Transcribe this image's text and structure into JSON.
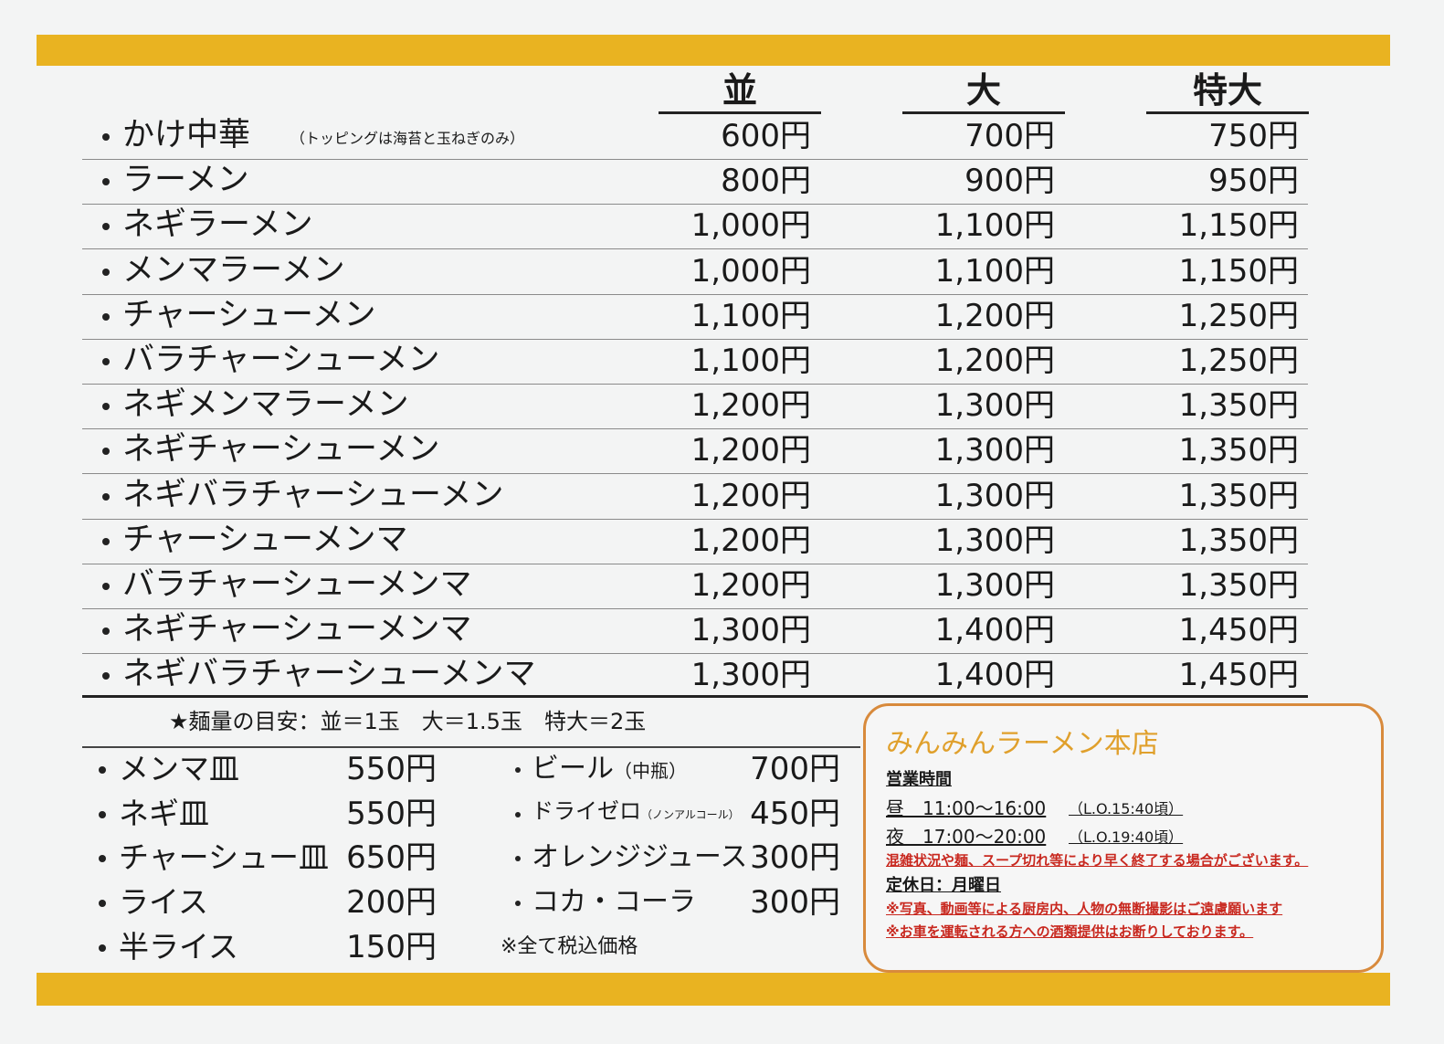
{
  "menu": {
    "headers": [
      "並",
      "大",
      "特大"
    ],
    "items": [
      {
        "name": "かけ中華",
        "note": "（トッピングは海苔と玉ねぎのみ）",
        "prices": [
          "600円",
          "700円",
          "750円"
        ]
      },
      {
        "name": "ラーメン",
        "prices": [
          "800円",
          "900円",
          "950円"
        ]
      },
      {
        "name": "ネギラーメン",
        "prices": [
          "1,000円",
          "1,100円",
          "1,150円"
        ]
      },
      {
        "name": "メンマラーメン",
        "prices": [
          "1,000円",
          "1,100円",
          "1,150円"
        ]
      },
      {
        "name": "チャーシューメン",
        "prices": [
          "1,100円",
          "1,200円",
          "1,250円"
        ]
      },
      {
        "name": "バラチャーシューメン",
        "prices": [
          "1,100円",
          "1,200円",
          "1,250円"
        ]
      },
      {
        "name": "ネギメンマラーメン",
        "prices": [
          "1,200円",
          "1,300円",
          "1,350円"
        ]
      },
      {
        "name": "ネギチャーシューメン",
        "prices": [
          "1,200円",
          "1,300円",
          "1,350円"
        ]
      },
      {
        "name": "ネギバラチャーシューメン",
        "prices": [
          "1,200円",
          "1,300円",
          "1,350円"
        ]
      },
      {
        "name": "チャーシューメンマ",
        "prices": [
          "1,200円",
          "1,300円",
          "1,350円"
        ]
      },
      {
        "name": "バラチャーシューメンマ",
        "prices": [
          "1,200円",
          "1,300円",
          "1,350円"
        ]
      },
      {
        "name": "ネギチャーシューメンマ",
        "prices": [
          "1,300円",
          "1,400円",
          "1,450円"
        ]
      },
      {
        "name": "ネギバラチャーシューメンマ",
        "prices": [
          "1,300円",
          "1,400円",
          "1,450円"
        ]
      }
    ],
    "noodle_note": "★麺量の目安：並＝1玉　大＝1.5玉　特大＝2玉",
    "sides": [
      {
        "name": "メンマ皿",
        "price": "550円"
      },
      {
        "name": "ネギ皿",
        "price": "550円"
      },
      {
        "name": "チャーシュー皿",
        "price": "650円"
      },
      {
        "name": "ライス",
        "price": "200円"
      },
      {
        "name": "半ライス",
        "price": "150円"
      }
    ],
    "drinks": [
      {
        "name": "ビール",
        "note": "（中瓶）",
        "price": "700円"
      },
      {
        "name": "ドライゼロ",
        "note": "（ノンアルコール）",
        "price": "450円"
      },
      {
        "name": "オレンジジュース",
        "price": "300円"
      },
      {
        "name": "コカ・コーラ",
        "price": "300円"
      }
    ],
    "tax_note": "※全て税込価格"
  },
  "info": {
    "title": "みんみんラーメン本店",
    "hours_heading": "営業時間",
    "lunch": "昼　11:00〜16:00",
    "lunch_lo": "（L.O.15:40頃）",
    "dinner": "夜　17:00〜20:00",
    "dinner_lo": "（L.O.19:40頃）",
    "notice": "混雑状況や麺、スープ切れ等により早く終了する場合がございます。",
    "closed": "定休日：月曜日",
    "rules": [
      "※写真、動画等による厨房内、人物の無断撮影はご遠慮願います",
      "※お車を運転される方への酒類提供はお断りしております。"
    ]
  }
}
